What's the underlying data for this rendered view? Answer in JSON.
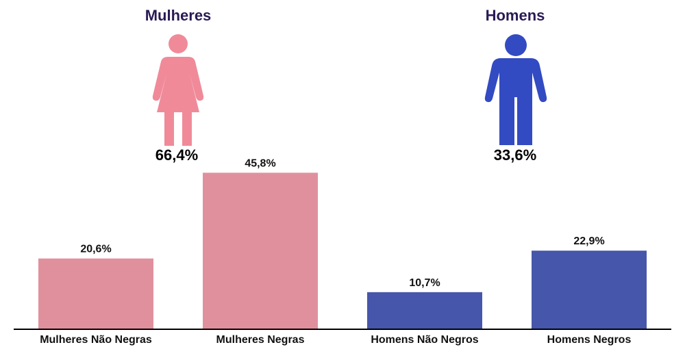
{
  "colors": {
    "female": "#f08a99",
    "male": "#324bc2",
    "female_bar": "#e0909d",
    "male_bar": "#4656aa",
    "title_color": "#2a1a55"
  },
  "groups": {
    "female": {
      "title": "Mulheres",
      "percent": "66,4%",
      "icon": "woman-icon"
    },
    "male": {
      "title": "Homens",
      "percent": "33,6%",
      "icon": "man-icon"
    }
  },
  "chart_data": {
    "type": "bar",
    "categories": [
      "Mulheres Não Negras",
      "Mulheres Negras",
      "Homens Não Negros",
      "Homens Negros"
    ],
    "values": [
      20.6,
      45.8,
      10.7,
      22.9
    ],
    "value_labels": [
      "20,6%",
      "45,8%",
      "10,7%",
      "22,9%"
    ],
    "bar_colors": [
      "#e0909d",
      "#e0909d",
      "#4656aa",
      "#4656aa"
    ],
    "ylim": [
      0,
      50
    ],
    "grid": false,
    "title": "",
    "xlabel": "",
    "ylabel": ""
  }
}
